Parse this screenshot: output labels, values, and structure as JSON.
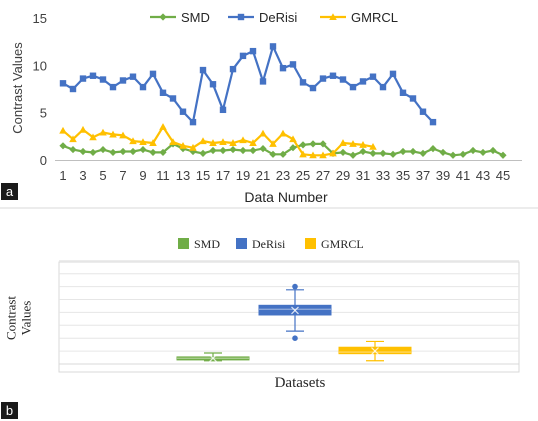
{
  "chart_data": [
    {
      "type": "line",
      "panel": "a",
      "xlabel": "Data Number",
      "ylabel": "Contrast Values",
      "ylim": [
        0,
        15
      ],
      "yticks": [
        0,
        5,
        10,
        15
      ],
      "xticks": [
        1,
        3,
        5,
        7,
        9,
        11,
        13,
        15,
        17,
        19,
        21,
        23,
        25,
        27,
        29,
        31,
        33,
        35,
        37,
        39,
        41,
        43,
        45
      ],
      "grid": false,
      "legend": "top-center",
      "series": [
        {
          "name": "SMD",
          "color": "#70ad47",
          "marker": "diamond",
          "x": [
            1,
            2,
            3,
            4,
            5,
            6,
            7,
            8,
            9,
            10,
            11,
            12,
            13,
            14,
            15,
            16,
            17,
            18,
            19,
            20,
            21,
            22,
            23,
            24,
            25,
            26,
            27,
            28,
            29,
            30,
            31,
            32,
            33,
            34,
            35,
            36,
            37,
            38,
            39,
            40,
            41,
            42,
            43,
            44,
            45
          ],
          "values": [
            1.5,
            1.1,
            0.9,
            0.8,
            1.1,
            0.8,
            0.9,
            0.9,
            1.1,
            0.8,
            0.8,
            1.7,
            1.2,
            0.9,
            0.7,
            1.0,
            1.0,
            1.1,
            1.0,
            1.0,
            1.2,
            0.6,
            0.6,
            1.3,
            1.6,
            1.7,
            1.7,
            0.7,
            0.8,
            0.5,
            0.9,
            0.7,
            0.7,
            0.6,
            0.9,
            0.9,
            0.7,
            1.2,
            0.8,
            0.5,
            0.6,
            1.0,
            0.8,
            1.0,
            0.5
          ]
        },
        {
          "name": "DeRisi",
          "color": "#4472c4",
          "marker": "square",
          "x": [
            1,
            2,
            3,
            4,
            5,
            6,
            7,
            8,
            9,
            10,
            11,
            12,
            13,
            14,
            15,
            16,
            17,
            18,
            19,
            20,
            21,
            22,
            23,
            24,
            25,
            26,
            27,
            28,
            29,
            30,
            31,
            32,
            33,
            34,
            35,
            36,
            37,
            38
          ],
          "values": [
            8.1,
            7.5,
            8.6,
            8.9,
            8.5,
            7.7,
            8.4,
            8.8,
            7.7,
            9.1,
            7.1,
            6.5,
            5.1,
            4.0,
            9.5,
            8.0,
            5.3,
            9.6,
            11.0,
            11.5,
            8.3,
            12.0,
            9.7,
            10.1,
            8.2,
            7.6,
            8.6,
            8.9,
            8.5,
            7.7,
            8.3,
            8.8,
            7.7,
            9.1,
            7.1,
            6.5,
            5.1,
            4.0
          ]
        },
        {
          "name": "GMRCL",
          "color": "#ffc000",
          "marker": "triangle",
          "x": [
            1,
            2,
            3,
            4,
            5,
            6,
            7,
            8,
            9,
            10,
            11,
            12,
            13,
            14,
            15,
            16,
            17,
            18,
            19,
            20,
            21,
            22,
            23,
            24,
            25,
            26,
            27,
            28,
            29,
            30,
            31,
            32
          ],
          "values": [
            3.1,
            2.2,
            3.2,
            2.4,
            2.9,
            2.7,
            2.6,
            2.0,
            1.9,
            1.8,
            3.5,
            1.9,
            1.5,
            1.3,
            2.0,
            1.8,
            1.9,
            1.8,
            2.1,
            1.8,
            2.8,
            1.7,
            2.8,
            2.2,
            0.6,
            0.5,
            0.5,
            0.7,
            1.8,
            1.7,
            1.6,
            1.4
          ]
        }
      ]
    },
    {
      "type": "box",
      "panel": "b",
      "xlabel": "Datasets",
      "ylabel": "Contrast\nValues",
      "grid": true,
      "legend": "top-center",
      "series": [
        {
          "name": "SMD",
          "color": "#70ad47",
          "min": 0.5,
          "q1": 0.7,
          "median": 0.9,
          "q3": 1.1,
          "max": 1.7,
          "mean": 0.9,
          "outliers": []
        },
        {
          "name": "DeRisi",
          "color": "#4472c4",
          "min": 5.1,
          "q1": 7.6,
          "median": 8.5,
          "q3": 9.1,
          "max": 11.5,
          "mean": 8.3,
          "outliers": [
            4.0,
            12.0
          ]
        },
        {
          "name": "GMRCL",
          "color": "#ffc000",
          "min": 0.5,
          "q1": 1.6,
          "median": 1.85,
          "q3": 2.6,
          "max": 3.5,
          "mean": 2.0,
          "outliers": []
        }
      ]
    }
  ],
  "panel_labels": [
    "a",
    "b"
  ]
}
